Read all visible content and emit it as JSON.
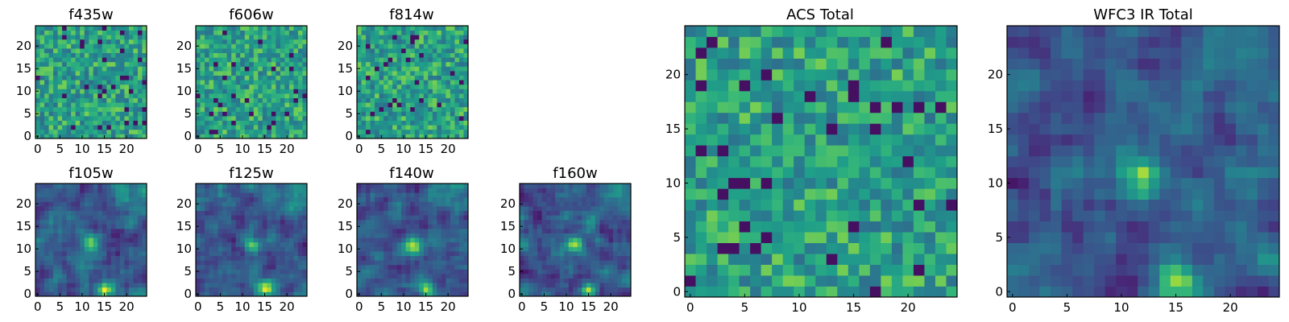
{
  "figure": {
    "panels": [
      {
        "id": "f435w",
        "title": "f435w",
        "field": "acs",
        "x_ticks": [
          "0",
          "5",
          "10",
          "15",
          "20"
        ],
        "y_ticks": [
          "0",
          "5",
          "10",
          "15",
          "20"
        ]
      },
      {
        "id": "f606w",
        "title": "f606w",
        "field": "acs",
        "x_ticks": [
          "0",
          "5",
          "10",
          "15",
          "20"
        ],
        "y_ticks": [
          "0",
          "5",
          "10",
          "15",
          "20"
        ]
      },
      {
        "id": "f814w",
        "title": "f814w",
        "field": "acs",
        "x_ticks": [
          "0",
          "5",
          "10",
          "15",
          "20"
        ],
        "y_ticks": [
          "0",
          "5",
          "10",
          "15",
          "20"
        ]
      },
      {
        "id": "f105w",
        "title": "f105w",
        "field": "ir",
        "x_ticks": [
          "0",
          "5",
          "10",
          "15",
          "20"
        ],
        "y_ticks": [
          "0",
          "5",
          "10",
          "15",
          "20"
        ]
      },
      {
        "id": "f125w",
        "title": "f125w",
        "field": "ir",
        "x_ticks": [
          "0",
          "5",
          "10",
          "15",
          "20"
        ],
        "y_ticks": [
          "0",
          "5",
          "10",
          "15",
          "20"
        ]
      },
      {
        "id": "f140w",
        "title": "f140w",
        "field": "ir",
        "x_ticks": [
          "0",
          "5",
          "10",
          "15",
          "20"
        ],
        "y_ticks": [
          "0",
          "5",
          "10",
          "15",
          "20"
        ]
      },
      {
        "id": "f160w",
        "title": "f160w",
        "field": "ir",
        "x_ticks": [
          "0",
          "5",
          "10",
          "15",
          "20"
        ],
        "y_ticks": [
          "0",
          "5",
          "10",
          "15",
          "20"
        ]
      },
      {
        "id": "acs-total",
        "title": "ACS Total",
        "field": "acs",
        "x_ticks": [
          "0",
          "5",
          "10",
          "15",
          "20"
        ],
        "y_ticks": [
          "0",
          "5",
          "10",
          "15",
          "20"
        ]
      },
      {
        "id": "wfc3-ir-total",
        "title": "WFC3 IR Total",
        "field": "ir",
        "x_ticks": [
          "0",
          "5",
          "10",
          "15",
          "20"
        ],
        "y_ticks": [
          "0",
          "5",
          "10",
          "15",
          "20"
        ]
      }
    ],
    "grid_size": 25,
    "colormap": "viridis",
    "colors": {
      "viridis_dark": "#440154",
      "viridis_mid": "#21918c",
      "viridis_bright": "#fde725"
    }
  }
}
